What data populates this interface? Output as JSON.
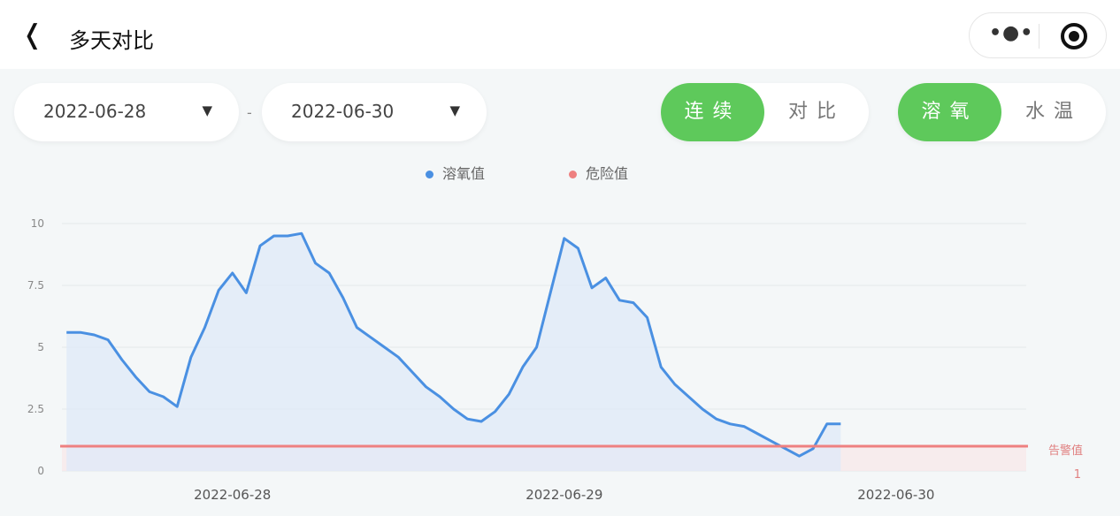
{
  "header": {
    "back_icon": "chevron-left-icon",
    "title": "多天对比",
    "more_icon": "more-dots-icon",
    "record_icon": "target-circle-icon"
  },
  "filters": {
    "start_date": "2022-06-28",
    "end_date": "2022-06-30",
    "separator": "-",
    "dropdown_icon": "triangle-down-icon"
  },
  "mode_toggle": {
    "options": [
      "连续",
      "对比"
    ],
    "selected": "连续"
  },
  "metric_toggle": {
    "options": [
      "溶氧",
      "水温"
    ],
    "selected": "溶氧"
  },
  "colors": {
    "accent": "#5ec95b",
    "series": "#4a90e2",
    "danger": "#ee8080"
  },
  "chart_data": {
    "type": "area",
    "legend": [
      {
        "name": "溶氧值",
        "color": "#4a90e2"
      },
      {
        "name": "危险值",
        "color": "#ee8080"
      }
    ],
    "legend_position": "top",
    "yticks": [
      "0",
      "2.5",
      "5",
      "7.5",
      "10"
    ],
    "ylim": [
      0,
      10
    ],
    "xticks": [
      "2022-06-28",
      "2022-06-29",
      "2022-06-30"
    ],
    "xlim": [
      "2022-06-27 11:40",
      "2022-06-30 09:25"
    ],
    "grid": true,
    "series": [
      {
        "name": "溶氧值",
        "x": [
          "2022-06-27 12:00",
          "2022-06-27 13:00",
          "2022-06-27 14:00",
          "2022-06-27 15:00",
          "2022-06-27 16:00",
          "2022-06-27 17:00",
          "2022-06-27 18:00",
          "2022-06-27 19:00",
          "2022-06-27 20:00",
          "2022-06-27 21:00",
          "2022-06-27 22:00",
          "2022-06-27 23:00",
          "2022-06-28 00:00",
          "2022-06-28 01:00",
          "2022-06-28 02:00",
          "2022-06-28 03:00",
          "2022-06-28 04:00",
          "2022-06-28 05:00",
          "2022-06-28 06:00",
          "2022-06-28 07:00",
          "2022-06-28 08:00",
          "2022-06-28 09:00",
          "2022-06-28 10:00",
          "2022-06-28 11:00",
          "2022-06-28 12:00",
          "2022-06-28 13:00",
          "2022-06-28 14:00",
          "2022-06-28 15:00",
          "2022-06-28 16:00",
          "2022-06-28 17:00",
          "2022-06-28 18:00",
          "2022-06-28 19:00",
          "2022-06-28 20:00",
          "2022-06-28 21:00",
          "2022-06-28 22:00",
          "2022-06-28 23:00",
          "2022-06-29 00:00",
          "2022-06-29 01:00",
          "2022-06-29 02:00",
          "2022-06-29 03:00",
          "2022-06-29 04:00",
          "2022-06-29 05:00",
          "2022-06-29 06:00",
          "2022-06-29 07:00",
          "2022-06-29 08:00",
          "2022-06-29 09:00",
          "2022-06-29 10:00",
          "2022-06-29 11:00",
          "2022-06-29 12:00",
          "2022-06-29 13:00",
          "2022-06-29 14:00",
          "2022-06-29 15:00",
          "2022-06-29 16:00",
          "2022-06-29 17:00",
          "2022-06-29 18:00",
          "2022-06-29 19:00",
          "2022-06-29 20:00"
        ],
        "values": [
          5.6,
          5.6,
          5.5,
          5.3,
          4.5,
          3.8,
          3.2,
          3.0,
          2.6,
          4.6,
          5.8,
          7.3,
          8.0,
          7.2,
          9.1,
          9.5,
          9.5,
          9.6,
          8.4,
          8.0,
          7.0,
          5.8,
          5.4,
          5.0,
          4.6,
          4.0,
          3.4,
          3.0,
          2.5,
          2.1,
          2.0,
          2.4,
          3.1,
          4.2,
          5.0,
          7.2,
          9.4,
          9.0,
          7.4,
          7.8,
          6.9,
          6.8,
          6.2,
          4.2,
          3.5,
          3.0,
          2.5,
          2.1,
          1.9,
          1.8,
          1.5,
          1.2,
          0.9,
          0.6,
          0.9,
          1.9,
          1.9
        ]
      }
    ],
    "threshold": {
      "name": "危险值",
      "label": "告警值",
      "value": 1,
      "value_label": "1"
    }
  }
}
